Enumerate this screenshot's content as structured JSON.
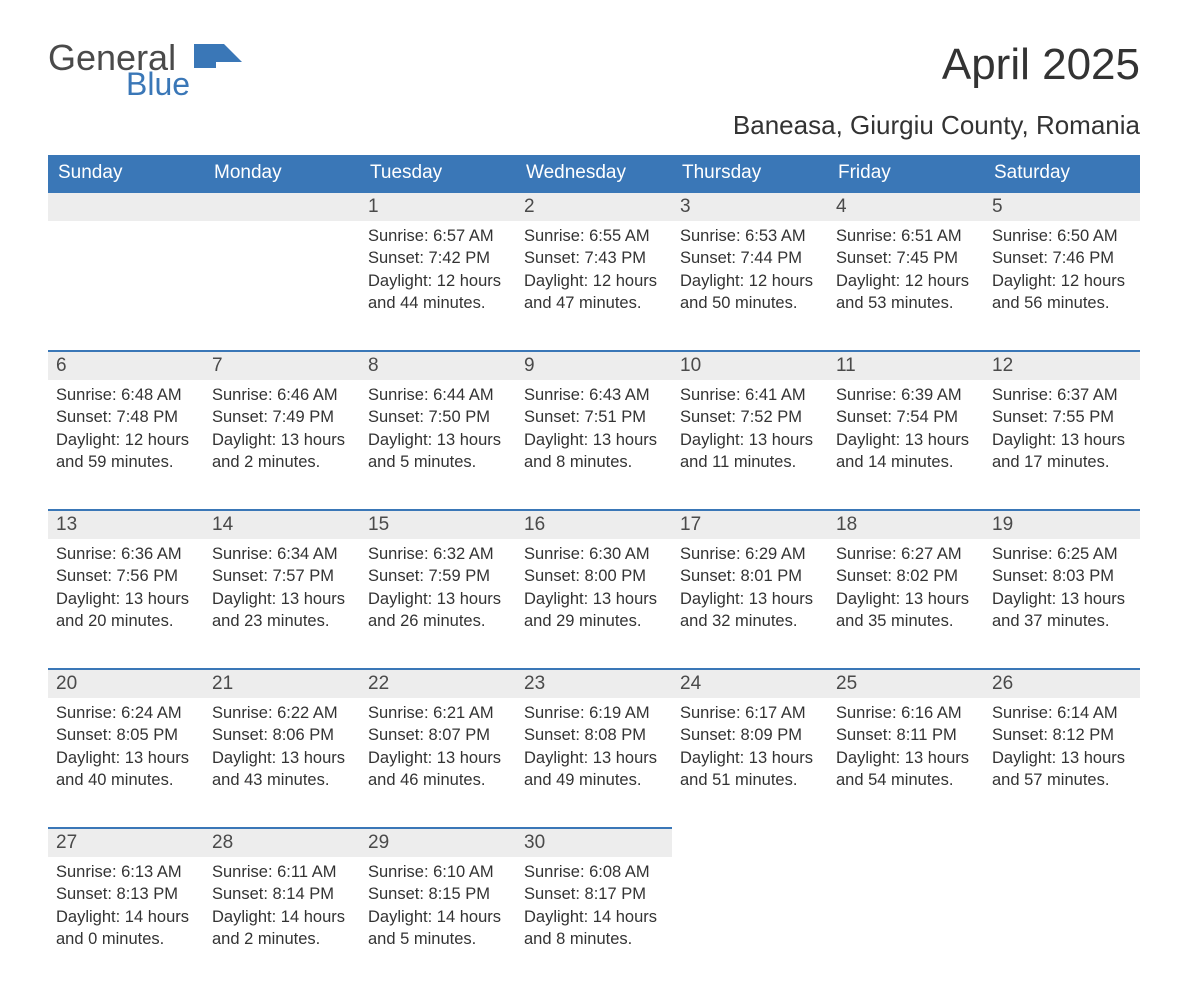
{
  "brand": {
    "main": "General",
    "sub": "Blue",
    "flag_color": "#3a77b7"
  },
  "title": "April 2025",
  "location": "Baneasa, Giurgiu County, Romania",
  "colors": {
    "header_bg": "#3a77b7",
    "header_text": "#ffffff",
    "daynum_bg": "#ededed",
    "row_border": "#3a77b7",
    "body_text": "#333333",
    "page_bg": "#ffffff"
  },
  "dayHeaders": [
    "Sunday",
    "Monday",
    "Tuesday",
    "Wednesday",
    "Thursday",
    "Friday",
    "Saturday"
  ],
  "weeks": [
    [
      null,
      null,
      {
        "n": "1",
        "sr": "6:57 AM",
        "ss": "7:42 PM",
        "dl": "12 hours and 44 minutes."
      },
      {
        "n": "2",
        "sr": "6:55 AM",
        "ss": "7:43 PM",
        "dl": "12 hours and 47 minutes."
      },
      {
        "n": "3",
        "sr": "6:53 AM",
        "ss": "7:44 PM",
        "dl": "12 hours and 50 minutes."
      },
      {
        "n": "4",
        "sr": "6:51 AM",
        "ss": "7:45 PM",
        "dl": "12 hours and 53 minutes."
      },
      {
        "n": "5",
        "sr": "6:50 AM",
        "ss": "7:46 PM",
        "dl": "12 hours and 56 minutes."
      }
    ],
    [
      {
        "n": "6",
        "sr": "6:48 AM",
        "ss": "7:48 PM",
        "dl": "12 hours and 59 minutes."
      },
      {
        "n": "7",
        "sr": "6:46 AM",
        "ss": "7:49 PM",
        "dl": "13 hours and 2 minutes."
      },
      {
        "n": "8",
        "sr": "6:44 AM",
        "ss": "7:50 PM",
        "dl": "13 hours and 5 minutes."
      },
      {
        "n": "9",
        "sr": "6:43 AM",
        "ss": "7:51 PM",
        "dl": "13 hours and 8 minutes."
      },
      {
        "n": "10",
        "sr": "6:41 AM",
        "ss": "7:52 PM",
        "dl": "13 hours and 11 minutes."
      },
      {
        "n": "11",
        "sr": "6:39 AM",
        "ss": "7:54 PM",
        "dl": "13 hours and 14 minutes."
      },
      {
        "n": "12",
        "sr": "6:37 AM",
        "ss": "7:55 PM",
        "dl": "13 hours and 17 minutes."
      }
    ],
    [
      {
        "n": "13",
        "sr": "6:36 AM",
        "ss": "7:56 PM",
        "dl": "13 hours and 20 minutes."
      },
      {
        "n": "14",
        "sr": "6:34 AM",
        "ss": "7:57 PM",
        "dl": "13 hours and 23 minutes."
      },
      {
        "n": "15",
        "sr": "6:32 AM",
        "ss": "7:59 PM",
        "dl": "13 hours and 26 minutes."
      },
      {
        "n": "16",
        "sr": "6:30 AM",
        "ss": "8:00 PM",
        "dl": "13 hours and 29 minutes."
      },
      {
        "n": "17",
        "sr": "6:29 AM",
        "ss": "8:01 PM",
        "dl": "13 hours and 32 minutes."
      },
      {
        "n": "18",
        "sr": "6:27 AM",
        "ss": "8:02 PM",
        "dl": "13 hours and 35 minutes."
      },
      {
        "n": "19",
        "sr": "6:25 AM",
        "ss": "8:03 PM",
        "dl": "13 hours and 37 minutes."
      }
    ],
    [
      {
        "n": "20",
        "sr": "6:24 AM",
        "ss": "8:05 PM",
        "dl": "13 hours and 40 minutes."
      },
      {
        "n": "21",
        "sr": "6:22 AM",
        "ss": "8:06 PM",
        "dl": "13 hours and 43 minutes."
      },
      {
        "n": "22",
        "sr": "6:21 AM",
        "ss": "8:07 PM",
        "dl": "13 hours and 46 minutes."
      },
      {
        "n": "23",
        "sr": "6:19 AM",
        "ss": "8:08 PM",
        "dl": "13 hours and 49 minutes."
      },
      {
        "n": "24",
        "sr": "6:17 AM",
        "ss": "8:09 PM",
        "dl": "13 hours and 51 minutes."
      },
      {
        "n": "25",
        "sr": "6:16 AM",
        "ss": "8:11 PM",
        "dl": "13 hours and 54 minutes."
      },
      {
        "n": "26",
        "sr": "6:14 AM",
        "ss": "8:12 PM",
        "dl": "13 hours and 57 minutes."
      }
    ],
    [
      {
        "n": "27",
        "sr": "6:13 AM",
        "ss": "8:13 PM",
        "dl": "14 hours and 0 minutes."
      },
      {
        "n": "28",
        "sr": "6:11 AM",
        "ss": "8:14 PM",
        "dl": "14 hours and 2 minutes."
      },
      {
        "n": "29",
        "sr": "6:10 AM",
        "ss": "8:15 PM",
        "dl": "14 hours and 5 minutes."
      },
      {
        "n": "30",
        "sr": "6:08 AM",
        "ss": "8:17 PM",
        "dl": "14 hours and 8 minutes."
      },
      null,
      null,
      null
    ]
  ],
  "labels": {
    "sunrise": "Sunrise: ",
    "sunset": "Sunset: ",
    "daylight": "Daylight: "
  }
}
